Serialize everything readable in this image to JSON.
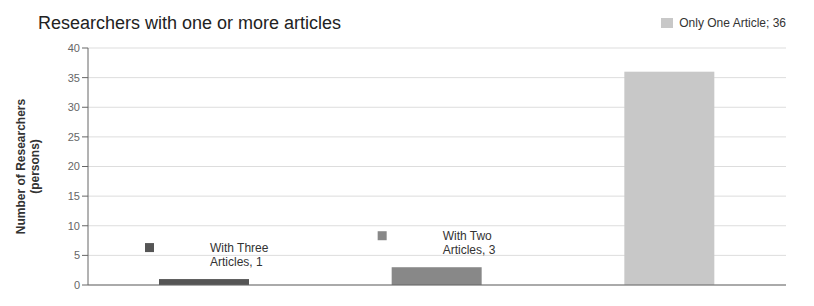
{
  "chart_data": {
    "type": "bar",
    "title": "Researchers with one or more articles",
    "y_label": "Number of Researchers\n(persons)",
    "categories": [
      "Three Articles",
      "Two Articles",
      "One Article"
    ],
    "values": [
      1,
      3,
      36
    ],
    "colors": [
      "#555555",
      "#888888",
      "#c8c8c8"
    ],
    "ylim": [
      0,
      40
    ],
    "yticks": [
      0,
      5,
      10,
      15,
      20,
      25,
      30,
      35,
      40
    ],
    "grid": true,
    "tick_labels": "y",
    "legend": "upper right",
    "legend_entries": [
      {
        "name": "Only One Article; 36",
        "color": "#c8c8c8"
      }
    ],
    "annotations": [
      {
        "text": "With Three\nArticles, 1",
        "category": "Three Articles"
      },
      {
        "text": "With Two\nArticles, 3",
        "category": "Two Articles"
      }
    ]
  }
}
